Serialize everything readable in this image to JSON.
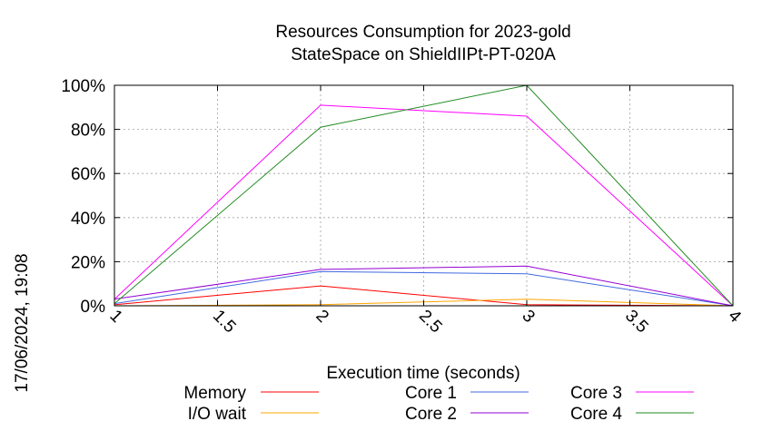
{
  "chart_data": {
    "type": "line",
    "title_line1": "Resources Consumption for 2023-gold",
    "title_line2": "StateSpace on ShieldIIPt-PT-020A",
    "xlabel": "Execution time (seconds)",
    "ylabel": "",
    "timestamp": "17/06/2024, 19:08",
    "xlim": [
      1,
      4
    ],
    "ylim": [
      0,
      100
    ],
    "x_ticks": [
      "1",
      "1.5",
      "2",
      "2.5",
      "3",
      "3.5",
      "4"
    ],
    "x_tick_values": [
      1,
      1.5,
      2,
      2.5,
      3,
      3.5,
      4
    ],
    "y_ticks": [
      "0%",
      "20%",
      "40%",
      "60%",
      "80%",
      "100%"
    ],
    "y_tick_values": [
      0,
      20,
      40,
      60,
      80,
      100
    ],
    "grid": true,
    "legend_position": "bottom",
    "x": [
      1,
      2,
      3,
      4
    ],
    "series": [
      {
        "name": "Memory",
        "color": "#ff0000",
        "values": [
          0.5,
          9,
          0.5,
          0
        ]
      },
      {
        "name": "I/O wait",
        "color": "#ffa500",
        "values": [
          0,
          0.5,
          3,
          0
        ]
      },
      {
        "name": "Core 1",
        "color": "#4169e1",
        "values": [
          1,
          15.5,
          14.5,
          0
        ]
      },
      {
        "name": "Core 2",
        "color": "#9400d3",
        "values": [
          3,
          16.5,
          18,
          0
        ]
      },
      {
        "name": "Core 3",
        "color": "#ff00ff",
        "values": [
          3,
          91,
          86,
          0
        ]
      },
      {
        "name": "Core 4",
        "color": "#228b22",
        "values": [
          1,
          81,
          100,
          0
        ]
      }
    ]
  }
}
